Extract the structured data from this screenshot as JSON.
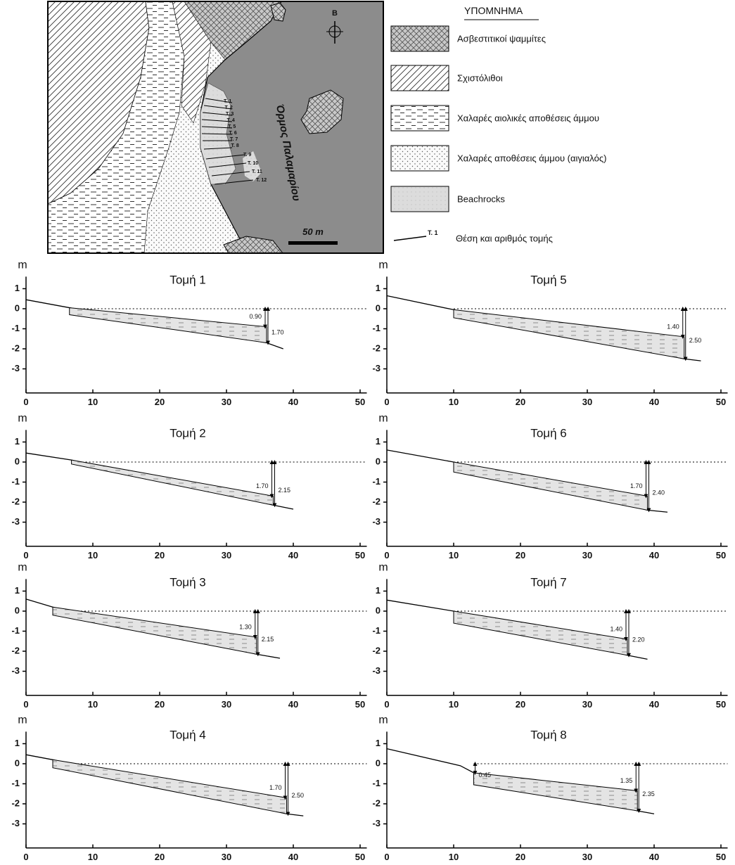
{
  "map": {
    "bay_label": "Όρμος Παλαμαρίου",
    "north": "Β",
    "scale": "50 m",
    "sections": [
      "Τ. 1",
      "Τ. 2",
      "Τ. 3",
      "Τ. 4",
      "Τ. 5",
      "Τ. 6",
      "Τ. 7",
      "Τ. 8",
      "Τ. 9",
      "Τ. 10",
      "Τ. 11",
      "Τ. 12"
    ]
  },
  "legend": {
    "title": "ΥΠΟΜΝΗΜΑ",
    "items": [
      "Ασβεστιτικοί ψαμμίτες",
      "Σχιστόλιθοι",
      "Χαλαρές αιολικές αποθέσεις άμμου",
      "Χαλαρές αποθέσεις άμμου (αιγιαλός)",
      "Beachrocks"
    ],
    "section_symbol": "Τ. 1",
    "section_label": "Θέση και αριθμός τομής"
  },
  "chart_data": [
    {
      "type": "profile",
      "title": "Τομή 1",
      "y_label": "m",
      "xlim": [
        0,
        51
      ],
      "ylim": [
        -4.2,
        1.6
      ],
      "xticks": [
        0,
        10,
        20,
        30,
        40,
        50
      ],
      "yticks": [
        1,
        0,
        -1,
        -2,
        -3
      ],
      "ground": {
        "x": [
          0,
          6.5,
          36,
          38.5
        ],
        "y": [
          0.45,
          0.05,
          -1.7,
          -2.0
        ]
      },
      "beachrock": {
        "x": [
          6.5,
          36
        ],
        "top": [
          0.05,
          -0.9
        ],
        "bottom": [
          -0.3,
          -1.7
        ]
      },
      "annotations": [
        {
          "x": 36,
          "value": 0.9,
          "label": "0.90"
        },
        {
          "x": 36,
          "value": 1.7,
          "label": "1.70"
        }
      ]
    },
    {
      "type": "profile",
      "title": "Τομή 2",
      "y_label": "m",
      "xlim": [
        0,
        51
      ],
      "ylim": [
        -4.2,
        1.6
      ],
      "xticks": [
        0,
        10,
        20,
        30,
        40,
        50
      ],
      "yticks": [
        1,
        0,
        -1,
        -2,
        -3
      ],
      "ground": {
        "x": [
          0,
          6.8,
          37,
          40
        ],
        "y": [
          0.45,
          0.1,
          -2.15,
          -2.35
        ]
      },
      "beachrock": {
        "x": [
          6.8,
          37
        ],
        "top": [
          0.1,
          -1.7
        ],
        "bottom": [
          -0.1,
          -2.15
        ]
      },
      "annotations": [
        {
          "x": 37,
          "value": 1.7,
          "label": "1.70"
        },
        {
          "x": 37,
          "value": 2.15,
          "label": "2.15"
        }
      ]
    },
    {
      "type": "profile",
      "title": "Τομή 3",
      "y_label": "m",
      "xlim": [
        0,
        51
      ],
      "ylim": [
        -4.2,
        1.6
      ],
      "xticks": [
        0,
        10,
        20,
        30,
        40,
        50
      ],
      "yticks": [
        1,
        0,
        -1,
        -2,
        -3
      ],
      "ground": {
        "x": [
          0,
          4,
          34.5,
          38
        ],
        "y": [
          0.6,
          0.2,
          -2.15,
          -2.35
        ]
      },
      "beachrock": {
        "x": [
          4,
          34.5
        ],
        "top": [
          0.2,
          -1.3
        ],
        "bottom": [
          -0.2,
          -2.15
        ]
      },
      "annotations": [
        {
          "x": 34.5,
          "value": 1.3,
          "label": "1.30"
        },
        {
          "x": 34.5,
          "value": 2.15,
          "label": "2.15"
        }
      ]
    },
    {
      "type": "profile",
      "title": "Τομή 4",
      "y_label": "m",
      "xlim": [
        0,
        51
      ],
      "ylim": [
        -4.2,
        1.6
      ],
      "xticks": [
        0,
        10,
        20,
        30,
        40,
        50
      ],
      "yticks": [
        1,
        0,
        -1,
        -2,
        -3
      ],
      "ground": {
        "x": [
          0,
          4,
          39,
          41.5
        ],
        "y": [
          0.45,
          0.2,
          -2.5,
          -2.6
        ]
      },
      "beachrock": {
        "x": [
          4,
          39
        ],
        "top": [
          0.2,
          -1.7
        ],
        "bottom": [
          -0.2,
          -2.5
        ]
      },
      "annotations": [
        {
          "x": 39,
          "value": 1.7,
          "label": "1.70"
        },
        {
          "x": 39,
          "value": 2.5,
          "label": "2.50"
        }
      ]
    },
    {
      "type": "profile",
      "title": "Τομή 5",
      "y_label": "m",
      "xlim": [
        0,
        51
      ],
      "ylim": [
        -4.2,
        1.6
      ],
      "xticks": [
        0,
        10,
        20,
        30,
        40,
        50
      ],
      "yticks": [
        1,
        0,
        -1,
        -2,
        -3
      ],
      "ground": {
        "x": [
          0,
          10,
          44.5,
          47
        ],
        "y": [
          0.65,
          -0.05,
          -2.5,
          -2.6
        ]
      },
      "beachrock": {
        "x": [
          10,
          44.5
        ],
        "top": [
          -0.05,
          -1.4
        ],
        "bottom": [
          -0.45,
          -2.5
        ]
      },
      "annotations": [
        {
          "x": 44.5,
          "value": 1.4,
          "label": "1.40"
        },
        {
          "x": 44.5,
          "value": 2.5,
          "label": "2.50"
        }
      ]
    },
    {
      "type": "profile",
      "title": "Τομή 6",
      "y_label": "m",
      "xlim": [
        0,
        51
      ],
      "ylim": [
        -4.2,
        1.6
      ],
      "xticks": [
        0,
        10,
        20,
        30,
        40,
        50
      ],
      "yticks": [
        1,
        0,
        -1,
        -2,
        -3
      ],
      "ground": {
        "x": [
          0,
          10,
          39,
          42
        ],
        "y": [
          0.6,
          0,
          -2.4,
          -2.5
        ]
      },
      "beachrock": {
        "x": [
          10,
          39
        ],
        "top": [
          0,
          -1.7
        ],
        "bottom": [
          -0.5,
          -2.4
        ]
      },
      "annotations": [
        {
          "x": 39,
          "value": 1.7,
          "label": "1.70"
        },
        {
          "x": 39,
          "value": 2.4,
          "label": "2.40"
        }
      ]
    },
    {
      "type": "profile",
      "title": "Τομή 7",
      "y_label": "m",
      "xlim": [
        0,
        51
      ],
      "ylim": [
        -4.2,
        1.6
      ],
      "xticks": [
        0,
        10,
        20,
        30,
        40,
        50
      ],
      "yticks": [
        1,
        0,
        -1,
        -2,
        -3
      ],
      "ground": {
        "x": [
          0,
          10,
          36,
          39
        ],
        "y": [
          0.55,
          0,
          -2.2,
          -2.4
        ]
      },
      "beachrock": {
        "x": [
          10,
          36
        ],
        "top": [
          0,
          -1.4
        ],
        "bottom": [
          -0.6,
          -2.2
        ]
      },
      "annotations": [
        {
          "x": 36,
          "value": 1.4,
          "label": "1.40"
        },
        {
          "x": 36,
          "value": 2.2,
          "label": "2.20"
        }
      ]
    },
    {
      "type": "profile",
      "title": "Τομή 8",
      "y_label": "m",
      "xlim": [
        0,
        51
      ],
      "ylim": [
        -4.2,
        1.6
      ],
      "xticks": [
        0,
        10,
        20,
        30,
        40,
        50
      ],
      "yticks": [
        1,
        0,
        -1,
        -2,
        -3
      ],
      "ground": {
        "x": [
          0,
          11,
          13,
          37.5,
          40
        ],
        "y": [
          0.75,
          -0.1,
          -0.45,
          -2.35,
          -2.5
        ]
      },
      "beachrock": {
        "x": [
          13,
          37.5
        ],
        "top": [
          -0.45,
          -1.35
        ],
        "bottom": [
          -1.05,
          -2.35
        ]
      },
      "annotations": [
        {
          "x": 13,
          "value": 0.45,
          "label": "0.45"
        },
        {
          "x": 37.5,
          "value": 1.35,
          "label": "1.35"
        },
        {
          "x": 37.5,
          "value": 2.35,
          "label": "2.35"
        }
      ]
    }
  ]
}
